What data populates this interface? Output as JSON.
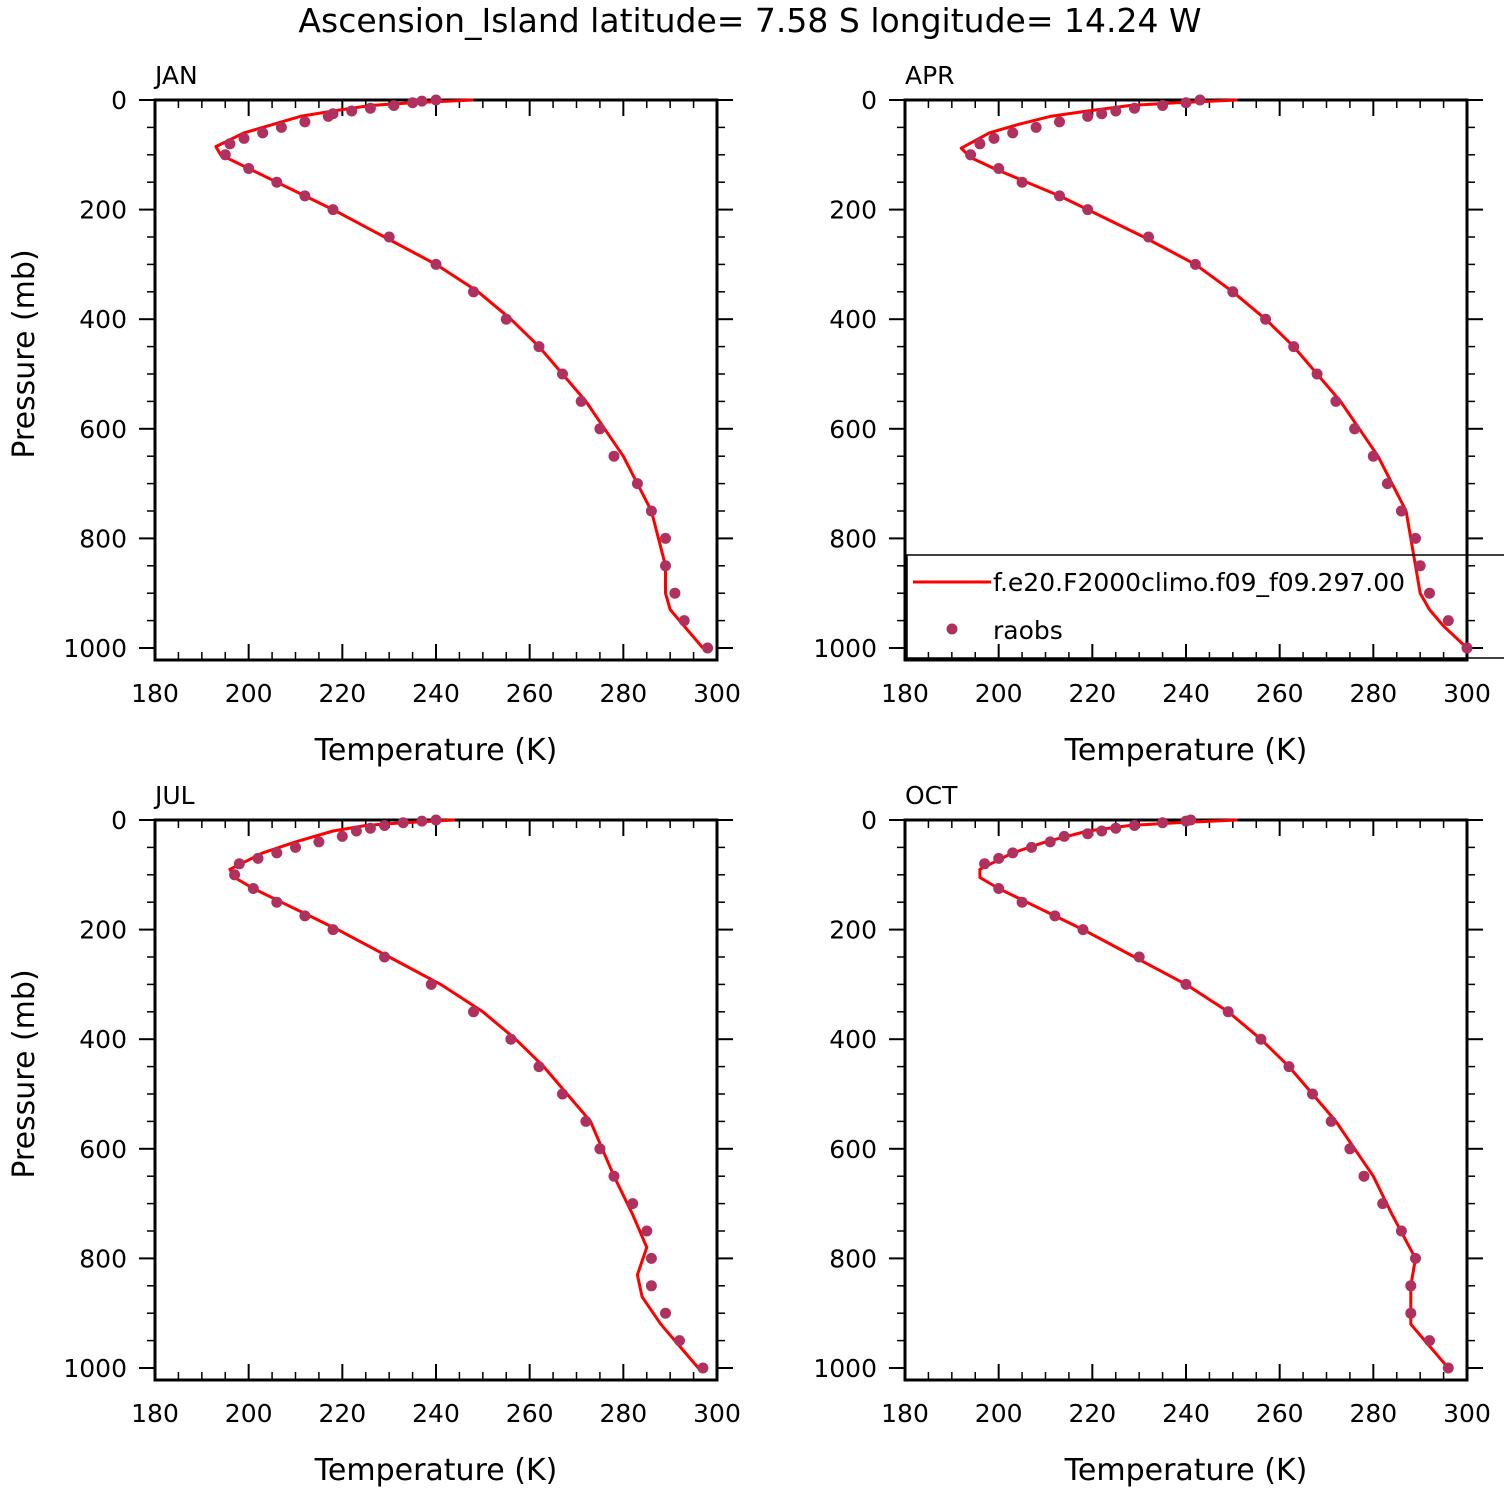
{
  "figure": {
    "title": "Ascension_Island  latitude= 7.58 S longitude= 14.24 W"
  },
  "colors": {
    "model_line": "#ff0000",
    "obs_marker": "#b03060",
    "axis": "#000000"
  },
  "legend": {
    "model_label": "f.e20.F2000climo.f09_f09.297.00",
    "obs_label": "raobs"
  },
  "chart_data": [
    {
      "type": "line",
      "panel": "JAN",
      "title": "JAN",
      "xlabel": "Temperature (K)",
      "ylabel": "Pressure (mb)",
      "xlim": [
        180,
        300
      ],
      "ylim": [
        1000,
        0
      ],
      "xticks": [
        180,
        200,
        220,
        240,
        260,
        280,
        300
      ],
      "yticks": [
        0,
        200,
        400,
        600,
        800,
        1000
      ],
      "series": [
        {
          "name": "f.e20.F2000climo.f09_f09.297.00",
          "style": "line",
          "x": [
            248,
            235,
            226,
            218,
            211,
            205,
            199,
            193,
            194,
            200,
            206,
            212,
            218,
            229,
            240,
            249,
            256,
            262,
            267,
            272,
            276,
            280,
            286,
            289,
            289,
            290,
            293,
            297
          ],
          "y": [
            0,
            5,
            10,
            20,
            30,
            45,
            60,
            85,
            100,
            125,
            150,
            175,
            200,
            250,
            300,
            350,
            400,
            450,
            500,
            550,
            600,
            650,
            750,
            850,
            900,
            930,
            960,
            1000
          ]
        },
        {
          "name": "raobs",
          "style": "marker",
          "x": [
            240,
            237,
            235,
            231,
            226,
            222,
            218,
            217,
            212,
            207,
            203,
            199,
            196,
            195,
            200,
            206,
            212,
            218,
            230,
            240,
            248,
            255,
            262,
            267,
            271,
            275,
            278,
            283,
            286,
            289,
            289,
            291,
            293,
            298
          ],
          "y": [
            0,
            2,
            5,
            10,
            15,
            20,
            25,
            30,
            40,
            50,
            60,
            70,
            80,
            100,
            125,
            150,
            175,
            200,
            250,
            300,
            350,
            400,
            450,
            500,
            550,
            600,
            650,
            700,
            750,
            800,
            850,
            900,
            950,
            1000
          ]
        }
      ]
    },
    {
      "type": "line",
      "panel": "APR",
      "title": "APR",
      "xlabel": "Temperature (K)",
      "ylabel": "",
      "xlim": [
        180,
        300
      ],
      "ylim": [
        1000,
        0
      ],
      "xticks": [
        180,
        200,
        220,
        240,
        260,
        280,
        300
      ],
      "yticks": [
        0,
        200,
        400,
        600,
        800,
        1000
      ],
      "legend_placement": "lower-right",
      "series": [
        {
          "name": "f.e20.F2000climo.f09_f09.297.00",
          "style": "line",
          "x": [
            251,
            238,
            228,
            219,
            211,
            204,
            198,
            192,
            194,
            199,
            206,
            213,
            219,
            231,
            242,
            250,
            257,
            263,
            268,
            273,
            277,
            281,
            287,
            289,
            290,
            292,
            295,
            300
          ],
          "y": [
            0,
            5,
            10,
            20,
            30,
            45,
            60,
            88,
            105,
            125,
            150,
            175,
            200,
            250,
            300,
            350,
            400,
            450,
            500,
            550,
            600,
            650,
            750,
            850,
            900,
            930,
            960,
            1000
          ]
        },
        {
          "name": "raobs",
          "style": "marker",
          "x": [
            243,
            240,
            235,
            229,
            225,
            222,
            219,
            213,
            208,
            203,
            199,
            196,
            194,
            200,
            205,
            213,
            219,
            232,
            242,
            250,
            257,
            263,
            268,
            272,
            276,
            280,
            283,
            286,
            289,
            290,
            292,
            296,
            300
          ],
          "y": [
            0,
            5,
            10,
            15,
            20,
            25,
            30,
            40,
            50,
            60,
            70,
            80,
            100,
            125,
            150,
            175,
            200,
            250,
            300,
            350,
            400,
            450,
            500,
            550,
            600,
            650,
            700,
            750,
            800,
            850,
            900,
            950,
            1000
          ]
        }
      ]
    },
    {
      "type": "line",
      "panel": "JUL",
      "title": "JUL",
      "xlabel": "Temperature (K)",
      "ylabel": "Pressure (mb)",
      "xlim": [
        180,
        300
      ],
      "ylim": [
        1000,
        0
      ],
      "xticks": [
        180,
        200,
        220,
        240,
        260,
        280,
        300
      ],
      "yticks": [
        0,
        200,
        400,
        600,
        800,
        1000
      ],
      "series": [
        {
          "name": "f.e20.F2000climo.f09_f09.297.00",
          "style": "line",
          "x": [
            244,
            233,
            225,
            218,
            210,
            203,
            196,
            197,
            201,
            207,
            213,
            219,
            230,
            241,
            250,
            257,
            263,
            268,
            273,
            278,
            282,
            285,
            283,
            284,
            288,
            296
          ],
          "y": [
            0,
            5,
            10,
            20,
            40,
            60,
            90,
            105,
            125,
            150,
            175,
            200,
            250,
            300,
            350,
            400,
            450,
            500,
            550,
            650,
            720,
            780,
            830,
            870,
            920,
            1000
          ]
        },
        {
          "name": "raobs",
          "style": "marker",
          "x": [
            240,
            237,
            233,
            229,
            226,
            223,
            220,
            215,
            210,
            206,
            202,
            198,
            197,
            201,
            206,
            212,
            218,
            229,
            239,
            248,
            256,
            262,
            267,
            272,
            275,
            278,
            282,
            285,
            286,
            286,
            289,
            292,
            297
          ],
          "y": [
            0,
            2,
            5,
            10,
            15,
            20,
            30,
            40,
            50,
            60,
            70,
            80,
            100,
            125,
            150,
            175,
            200,
            250,
            300,
            350,
            400,
            450,
            500,
            550,
            600,
            650,
            700,
            750,
            800,
            850,
            900,
            950,
            1000
          ]
        }
      ]
    },
    {
      "type": "line",
      "panel": "OCT",
      "title": "OCT",
      "xlabel": "Temperature (K)",
      "ylabel": "",
      "xlim": [
        180,
        300
      ],
      "ylim": [
        1000,
        0
      ],
      "xticks": [
        180,
        200,
        220,
        240,
        260,
        280,
        300
      ],
      "yticks": [
        0,
        200,
        400,
        600,
        800,
        1000
      ],
      "series": [
        {
          "name": "f.e20.F2000climo.f09_f09.297.00",
          "style": "line",
          "x": [
            251,
            238,
            228,
            219,
            210,
            203,
            196,
            196,
            200,
            206,
            212,
            218,
            229,
            240,
            249,
            256,
            262,
            267,
            272,
            276,
            280,
            284,
            289,
            288,
            288,
            291,
            296
          ],
          "y": [
            0,
            5,
            10,
            20,
            40,
            60,
            90,
            105,
            125,
            150,
            175,
            200,
            250,
            300,
            350,
            400,
            450,
            500,
            550,
            600,
            650,
            720,
            800,
            850,
            920,
            950,
            1000
          ]
        },
        {
          "name": "raobs",
          "style": "marker",
          "x": [
            241,
            240,
            235,
            229,
            225,
            222,
            219,
            214,
            211,
            207,
            203,
            200,
            197,
            200,
            205,
            212,
            218,
            230,
            240,
            249,
            256,
            262,
            267,
            271,
            275,
            278,
            282,
            286,
            289,
            288,
            288,
            292,
            296
          ],
          "y": [
            0,
            2,
            5,
            10,
            15,
            20,
            25,
            30,
            40,
            50,
            60,
            70,
            80,
            125,
            150,
            175,
            200,
            250,
            300,
            350,
            400,
            450,
            500,
            550,
            600,
            650,
            700,
            750,
            800,
            850,
            900,
            950,
            1000
          ]
        }
      ]
    }
  ]
}
